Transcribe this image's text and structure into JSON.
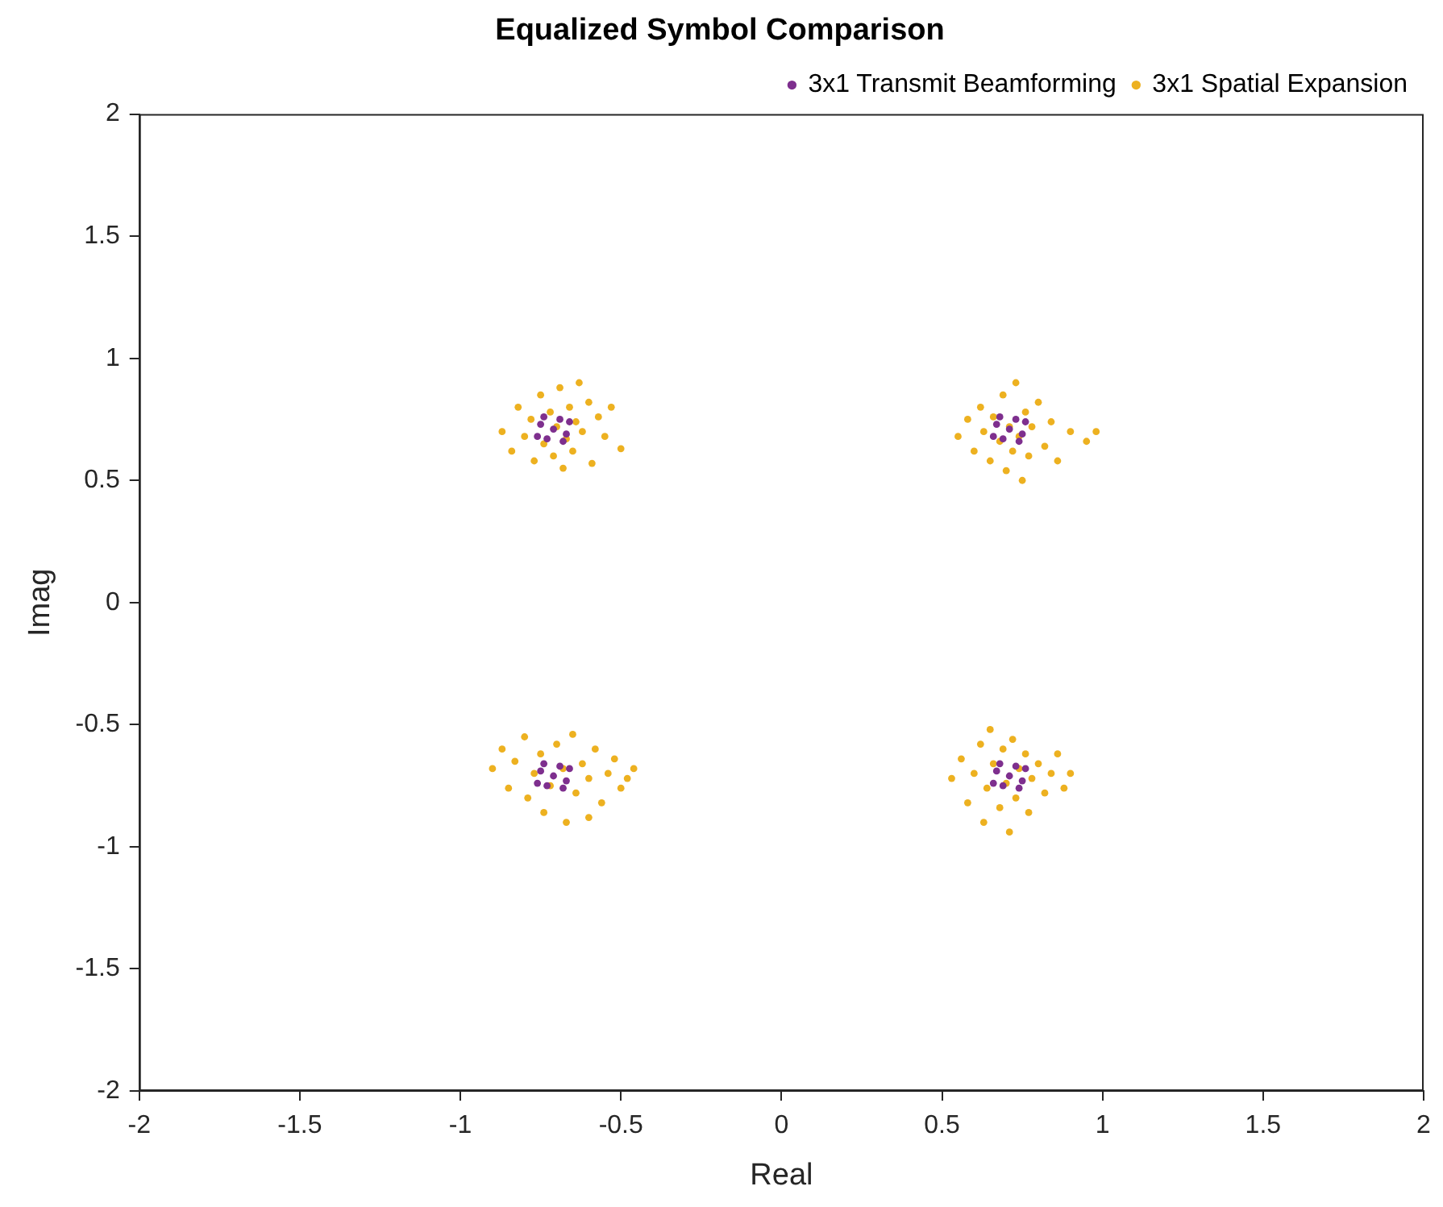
{
  "chart_data": {
    "type": "scatter",
    "title": "Equalized Symbol Comparison",
    "xlabel": "Real",
    "ylabel": "Imag",
    "xlim": [
      -2,
      2
    ],
    "ylim": [
      -2,
      2
    ],
    "xticks": [
      -2,
      -1.5,
      -1,
      -0.5,
      0,
      0.5,
      1,
      1.5,
      2
    ],
    "yticks": [
      -2,
      -1.5,
      -1,
      -0.5,
      0,
      0.5,
      1,
      1.5,
      2
    ],
    "grid": false,
    "legend": "top right",
    "marker": "circle",
    "series": [
      {
        "name": "3x1 Spatial Expansion",
        "color": "#edb120",
        "x": [
          -0.87,
          -0.84,
          -0.82,
          -0.8,
          -0.78,
          -0.77,
          -0.75,
          -0.74,
          -0.72,
          -0.71,
          -0.7,
          -0.69,
          -0.68,
          -0.67,
          -0.66,
          -0.65,
          -0.64,
          -0.63,
          -0.62,
          -0.6,
          -0.59,
          -0.57,
          -0.55,
          -0.53,
          -0.5,
          0.55,
          0.58,
          0.6,
          0.62,
          0.63,
          0.65,
          0.66,
          0.68,
          0.69,
          0.7,
          0.71,
          0.72,
          0.73,
          0.74,
          0.75,
          0.76,
          0.77,
          0.78,
          0.8,
          0.82,
          0.84,
          0.86,
          0.9,
          0.95,
          0.98,
          -0.9,
          -0.87,
          -0.85,
          -0.83,
          -0.8,
          -0.79,
          -0.77,
          -0.75,
          -0.74,
          -0.72,
          -0.7,
          -0.68,
          -0.67,
          -0.65,
          -0.64,
          -0.62,
          -0.6,
          -0.58,
          -0.56,
          -0.54,
          -0.52,
          -0.5,
          -0.48,
          -0.46,
          -0.6,
          0.53,
          0.56,
          0.58,
          0.6,
          0.62,
          0.63,
          0.64,
          0.65,
          0.66,
          0.68,
          0.69,
          0.7,
          0.71,
          0.72,
          0.73,
          0.74,
          0.76,
          0.77,
          0.78,
          0.8,
          0.82,
          0.84,
          0.86,
          0.88,
          0.9
        ],
        "values": [
          0.7,
          0.62,
          0.8,
          0.68,
          0.75,
          0.58,
          0.85,
          0.65,
          0.78,
          0.6,
          0.72,
          0.88,
          0.55,
          0.67,
          0.8,
          0.62,
          0.74,
          0.9,
          0.7,
          0.82,
          0.57,
          0.76,
          0.68,
          0.8,
          0.63,
          0.68,
          0.75,
          0.62,
          0.8,
          0.7,
          0.58,
          0.76,
          0.66,
          0.85,
          0.54,
          0.72,
          0.62,
          0.9,
          0.68,
          0.5,
          0.78,
          0.6,
          0.72,
          0.82,
          0.64,
          0.74,
          0.58,
          0.7,
          0.66,
          0.7,
          -0.68,
          -0.6,
          -0.76,
          -0.65,
          -0.55,
          -0.8,
          -0.7,
          -0.62,
          -0.86,
          -0.75,
          -0.58,
          -0.68,
          -0.9,
          -0.54,
          -0.78,
          -0.66,
          -0.72,
          -0.6,
          -0.82,
          -0.7,
          -0.64,
          -0.76,
          -0.72,
          -0.68,
          -0.88,
          -0.72,
          -0.64,
          -0.82,
          -0.7,
          -0.58,
          -0.9,
          -0.76,
          -0.52,
          -0.66,
          -0.84,
          -0.6,
          -0.74,
          -0.94,
          -0.56,
          -0.8,
          -0.68,
          -0.62,
          -0.86,
          -0.72,
          -0.66,
          -0.78,
          -0.7,
          -0.62,
          -0.76,
          -0.7
        ]
      },
      {
        "name": "3x1 Transmit Beamforming",
        "color": "#7e2f8e",
        "x": [
          -0.71,
          -0.75,
          -0.67,
          -0.69,
          -0.73,
          -0.66,
          -0.76,
          -0.68,
          -0.74,
          0.71,
          0.67,
          0.75,
          0.73,
          0.69,
          0.76,
          0.66,
          0.74,
          0.68,
          -0.71,
          -0.75,
          -0.67,
          -0.69,
          -0.73,
          -0.66,
          -0.76,
          -0.68,
          -0.74,
          0.71,
          0.67,
          0.75,
          0.73,
          0.69,
          0.76,
          0.66,
          0.74,
          0.68
        ],
        "values": [
          0.71,
          0.73,
          0.69,
          0.75,
          0.67,
          0.74,
          0.68,
          0.66,
          0.76,
          0.71,
          0.73,
          0.69,
          0.75,
          0.67,
          0.74,
          0.68,
          0.66,
          0.76,
          -0.71,
          -0.69,
          -0.73,
          -0.67,
          -0.75,
          -0.68,
          -0.74,
          -0.76,
          -0.66,
          -0.71,
          -0.69,
          -0.73,
          -0.67,
          -0.75,
          -0.68,
          -0.74,
          -0.76,
          -0.66
        ]
      }
    ]
  }
}
